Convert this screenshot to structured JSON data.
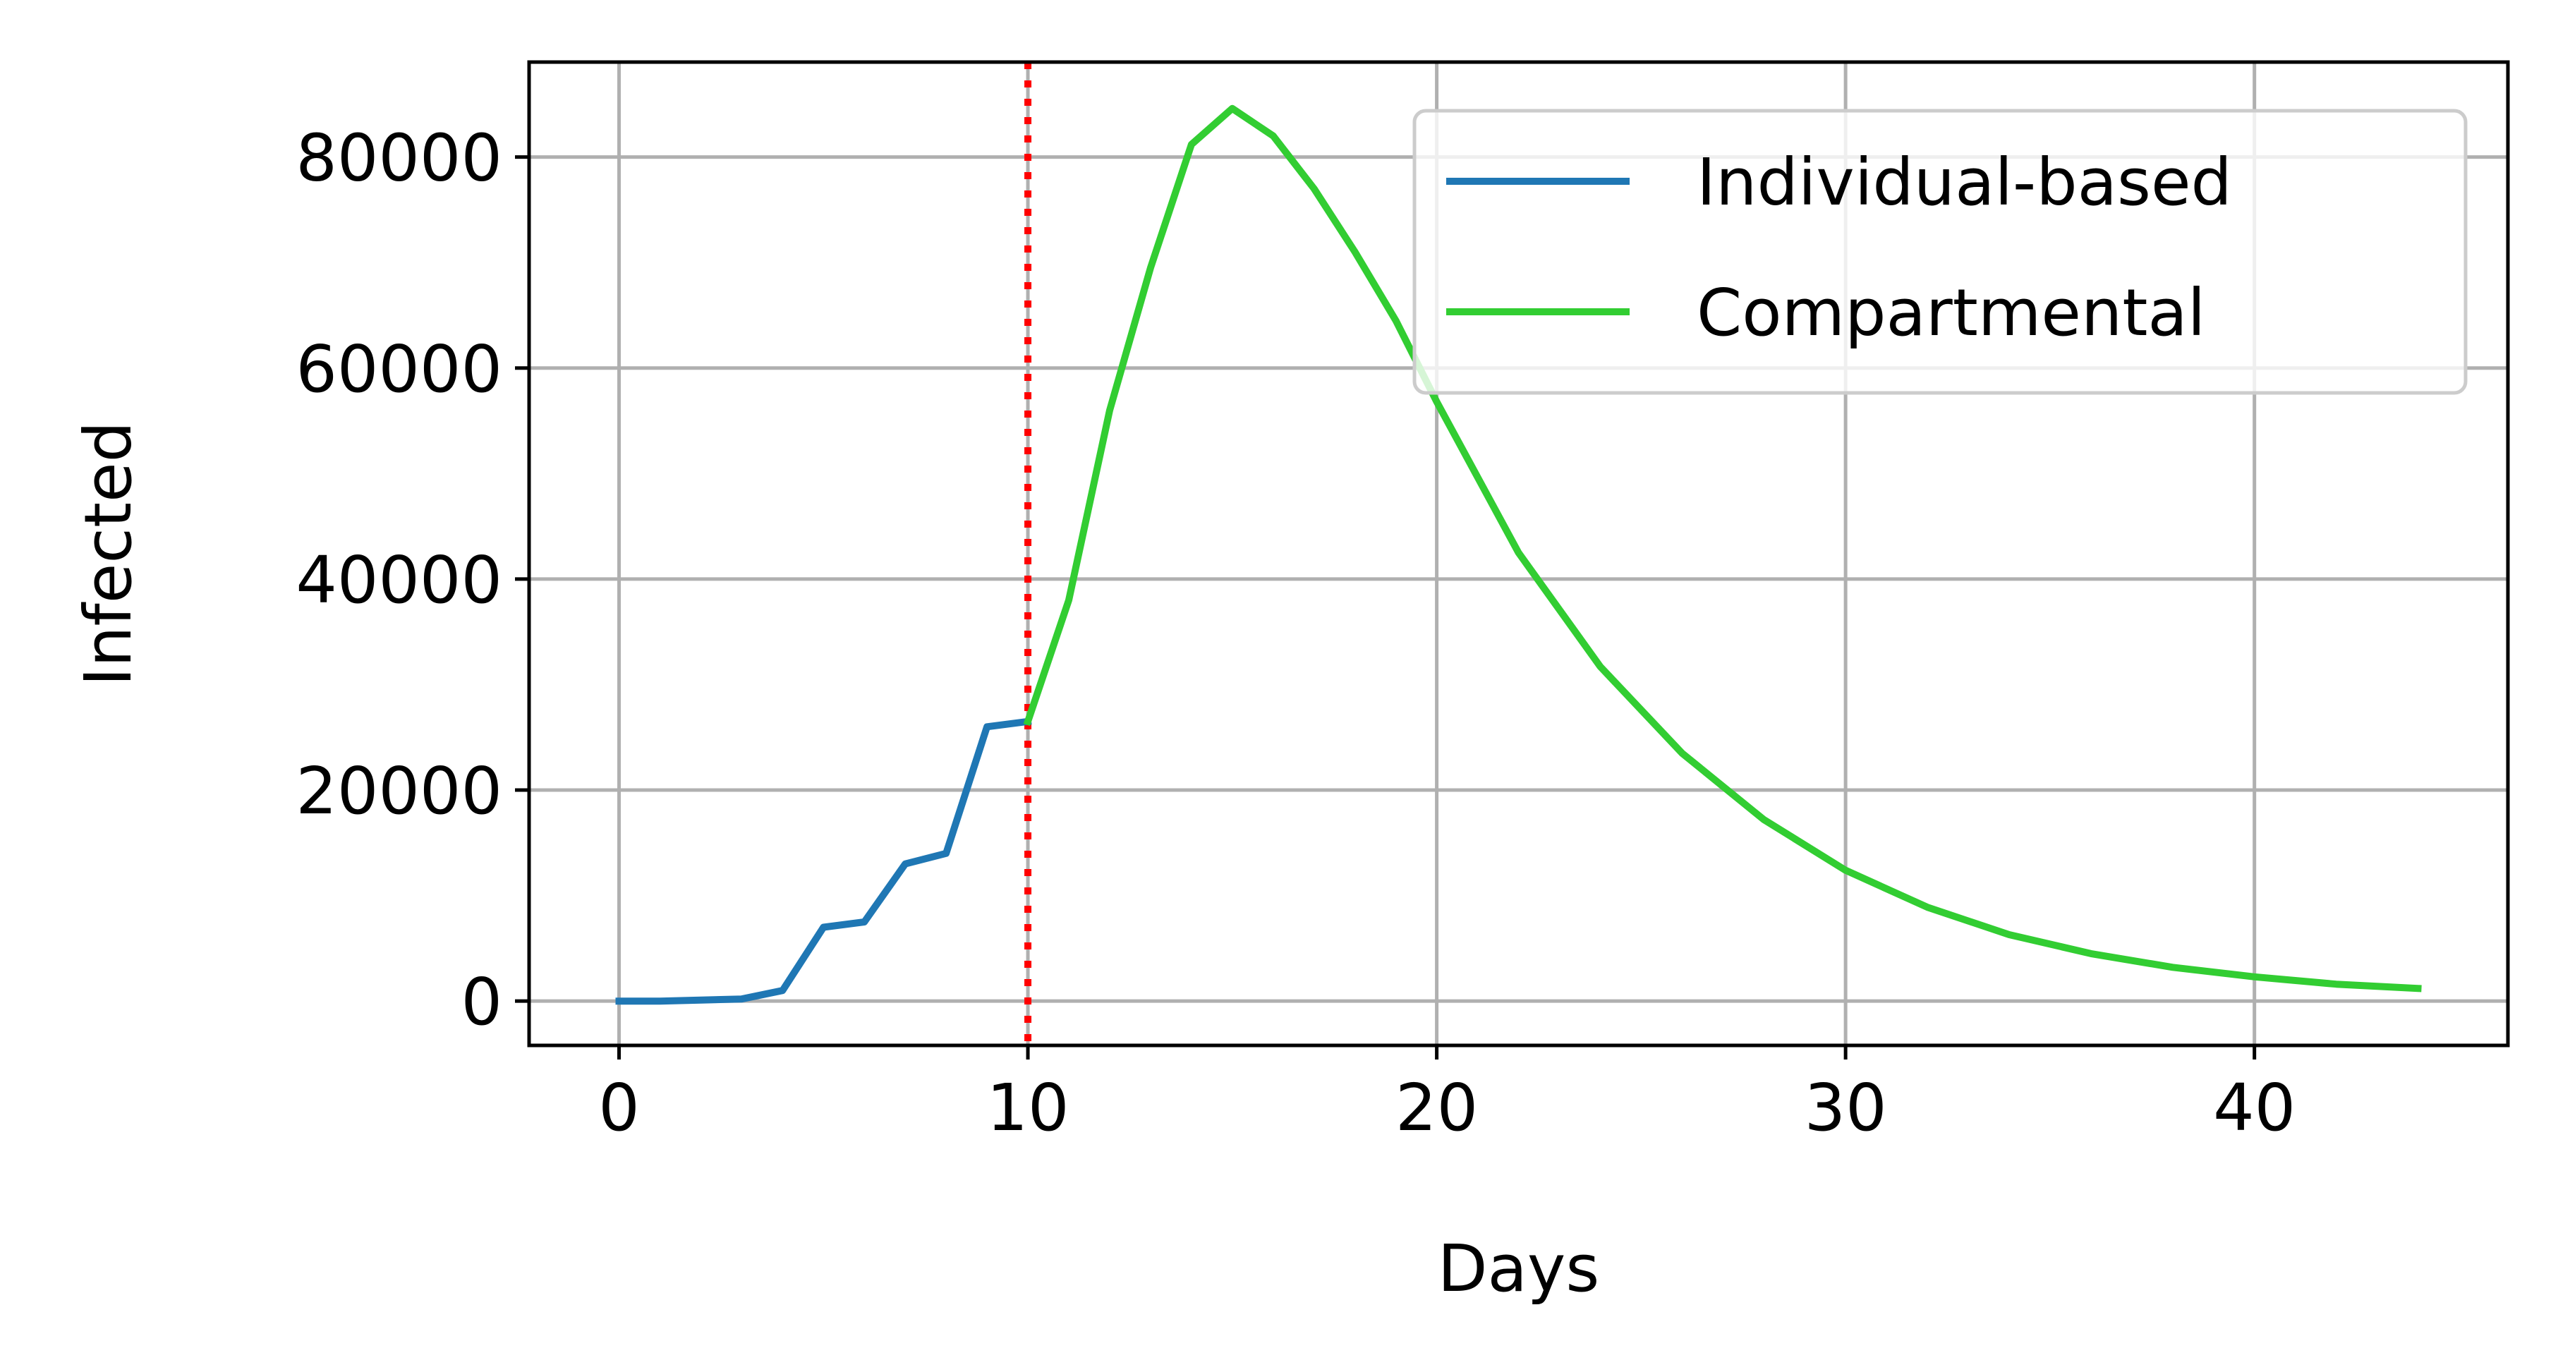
{
  "chart_data": {
    "type": "line",
    "title": "",
    "xlabel": "Days",
    "ylabel": "Infected",
    "xlim": [
      -2.2,
      46.2
    ],
    "ylim": [
      -4200,
      89000
    ],
    "xticks": [
      0,
      10,
      20,
      30,
      40
    ],
    "yticks": [
      0,
      20000,
      40000,
      60000,
      80000
    ],
    "xtick_labels": [
      "0",
      "10",
      "20",
      "30",
      "40"
    ],
    "ytick_labels": [
      "0",
      "20000",
      "40000",
      "60000",
      "80000"
    ],
    "grid": true,
    "legend_position": "top-right",
    "vline": {
      "x": 10,
      "color": "#ff0000",
      "style": "dotted"
    },
    "series": [
      {
        "name": "Individual-based",
        "color": "#1f77b4",
        "x": [
          0,
          1,
          2,
          3,
          4,
          5,
          6,
          7,
          8,
          9,
          10
        ],
        "y": [
          0,
          0,
          100,
          200,
          1000,
          7000,
          7500,
          13000,
          14000,
          26000,
          26500
        ]
      },
      {
        "name": "Compartmental",
        "color": "#32cd32",
        "x": [
          10,
          11,
          12,
          13,
          14,
          15,
          16,
          17,
          18,
          19,
          20,
          22,
          24,
          26,
          28,
          30,
          32,
          34,
          36,
          38,
          40,
          42,
          44
        ],
        "y": [
          26500,
          38000,
          56000,
          69500,
          81200,
          84600,
          82000,
          77000,
          71000,
          64500,
          56800,
          42500,
          31700,
          23500,
          17200,
          12400,
          8900,
          6300,
          4500,
          3200,
          2300,
          1600,
          1200
        ]
      }
    ]
  }
}
